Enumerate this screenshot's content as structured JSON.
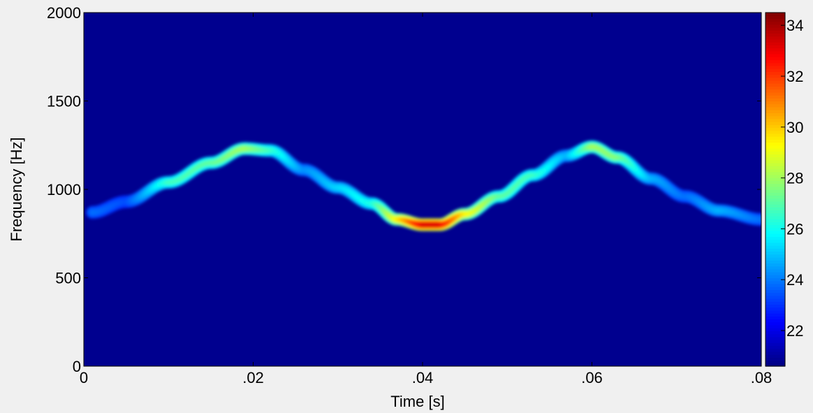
{
  "chart_data": {
    "type": "heatmap",
    "title": "",
    "xlabel": "Time [s]",
    "ylabel": "Frequency [Hz]",
    "xlim": [
      0,
      0.08
    ],
    "ylim": [
      0,
      2000
    ],
    "x_ticks": [
      {
        "value": 0,
        "label": "0"
      },
      {
        "value": 0.02,
        "label": ".02"
      },
      {
        "value": 0.04,
        "label": ".04"
      },
      {
        "value": 0.06,
        "label": ".06"
      },
      {
        "value": 0.08,
        "label": ".08"
      }
    ],
    "y_ticks": [
      {
        "value": 0,
        "label": "0"
      },
      {
        "value": 500,
        "label": "500"
      },
      {
        "value": 1000,
        "label": "1000"
      },
      {
        "value": 1500,
        "label": "1500"
      },
      {
        "value": 2000,
        "label": "2000"
      }
    ],
    "colorbar": {
      "colormap": "jet",
      "range": [
        20.6,
        34.5
      ],
      "ticks": [
        {
          "value": 22,
          "label": "22"
        },
        {
          "value": 24,
          "label": "24"
        },
        {
          "value": 26,
          "label": "26"
        },
        {
          "value": 28,
          "label": "28"
        },
        {
          "value": 30,
          "label": "30"
        },
        {
          "value": 32,
          "label": "32"
        },
        {
          "value": 34,
          "label": "34"
        }
      ]
    },
    "background_value": 20.6,
    "ridge": {
      "description_points_time_s": [
        0.001,
        0.005,
        0.01,
        0.015,
        0.019,
        0.022,
        0.026,
        0.03,
        0.034,
        0.037,
        0.04,
        0.042,
        0.045,
        0.049,
        0.053,
        0.057,
        0.06,
        0.063,
        0.067,
        0.071,
        0.075,
        0.08
      ],
      "frequency_hz": [
        870,
        930,
        1040,
        1150,
        1230,
        1220,
        1110,
        1010,
        920,
        830,
        800,
        800,
        860,
        960,
        1080,
        1190,
        1240,
        1180,
        1060,
        960,
        880,
        830
      ],
      "intensity": [
        24,
        23.5,
        27,
        27.5,
        28.5,
        27,
        24.5,
        25.5,
        26.5,
        30,
        34,
        34,
        30,
        27.5,
        27,
        25,
        28.5,
        28,
        25,
        24,
        25,
        24
      ]
    }
  }
}
